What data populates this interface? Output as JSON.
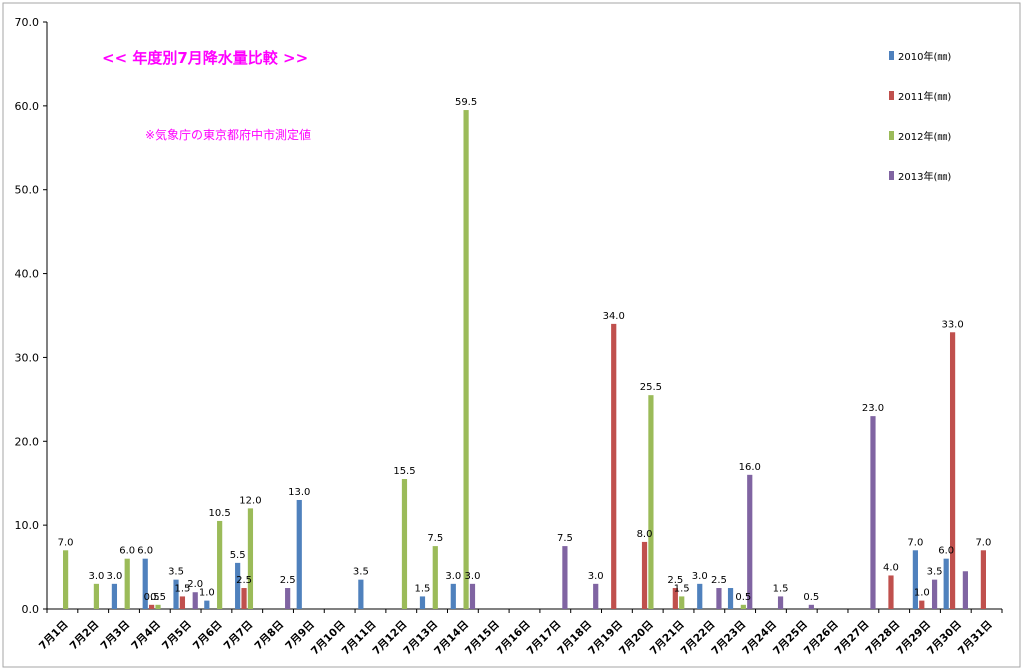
{
  "chart_data": {
    "type": "bar",
    "title": "<<  年度別7月降水量比較  >>",
    "subtitle": "※気象庁の東京都府中市測定値",
    "ylim": [
      0,
      70
    ],
    "yticks": [
      "0.0",
      "10.0",
      "20.0",
      "30.0",
      "40.0",
      "50.0",
      "60.0",
      "70.0"
    ],
    "grid": false,
    "legend_position": "right",
    "categories": [
      "7月1日",
      "7月2日",
      "7月3日",
      "7月4日",
      "7月5日",
      "7月6日",
      "7月7日",
      "7月8日",
      "7月9日",
      "7月10日",
      "7月11日",
      "7月12日",
      "7月13日",
      "7月14日",
      "7月15日",
      "7月16日",
      "7月17日",
      "7月18日",
      "7月19日",
      "7月20日",
      "7月21日",
      "7月22日",
      "7月23日",
      "7月24日",
      "7月25日",
      "7月26日",
      "7月27日",
      "7月28日",
      "7月29日",
      "7月30日",
      "7月31日"
    ],
    "series": [
      {
        "name": "2010年(㎜)",
        "color": "#4f81bd",
        "values": [
          null,
          null,
          3.0,
          6.0,
          3.5,
          1.0,
          5.5,
          null,
          13.0,
          null,
          3.5,
          null,
          1.5,
          3.0,
          null,
          null,
          null,
          null,
          null,
          null,
          null,
          3.0,
          2.5,
          null,
          null,
          null,
          null,
          null,
          7.0,
          6.0,
          null
        ]
      },
      {
        "name": "2011年(㎜)",
        "color": "#c0504d",
        "values": [
          null,
          null,
          null,
          0.5,
          1.5,
          null,
          2.5,
          null,
          null,
          null,
          null,
          null,
          null,
          null,
          null,
          null,
          null,
          null,
          34.0,
          8.0,
          2.5,
          null,
          null,
          null,
          null,
          null,
          null,
          4.0,
          1.0,
          33.0,
          7.0
        ]
      },
      {
        "name": "2012年(㎜)",
        "color": "#9bbb59",
        "values": [
          7.0,
          3.0,
          6.0,
          0.5,
          null,
          10.5,
          12.0,
          null,
          null,
          null,
          null,
          15.5,
          7.5,
          59.5,
          null,
          null,
          null,
          null,
          null,
          25.5,
          1.5,
          null,
          0.5,
          null,
          null,
          null,
          null,
          null,
          null,
          null,
          null
        ]
      },
      {
        "name": "2013年(㎜)",
        "color": "#8064a2",
        "values": [
          null,
          null,
          null,
          null,
          2.0,
          null,
          null,
          2.5,
          null,
          null,
          null,
          null,
          null,
          3.0,
          null,
          null,
          7.5,
          3.0,
          null,
          null,
          null,
          2.5,
          16.0,
          1.5,
          0.5,
          null,
          23.0,
          null,
          3.5,
          4.5,
          null
        ]
      }
    ],
    "data_labels": [
      {
        "category": "7月1日",
        "series": "2012年(㎜)",
        "text": "7.0"
      },
      {
        "category": "7月2日",
        "series": "2012年(㎜)",
        "text": "3.0"
      },
      {
        "category": "7月3日",
        "series": "2010年(㎜)",
        "text": "3.0"
      },
      {
        "category": "7月3日",
        "series": "2012年(㎜)",
        "text": "6.0"
      },
      {
        "category": "7月4日",
        "series": "2010年(㎜)",
        "text": "6.0"
      },
      {
        "category": "7月4日",
        "series": "2011年(㎜)",
        "text": "0.5"
      },
      {
        "category": "7月4日",
        "series": "2012年(㎜)",
        "text": "0.5"
      },
      {
        "category": "7月5日",
        "series": "2010年(㎜)",
        "text": "3.5"
      },
      {
        "category": "7月5日",
        "series": "2011年(㎜)",
        "text": "1.5"
      },
      {
        "category": "7月5日",
        "series": "2013年(㎜)",
        "text": "2.0"
      },
      {
        "category": "7月6日",
        "series": "2010年(㎜)",
        "text": "1.0"
      },
      {
        "category": "7月6日",
        "series": "2012年(㎜)",
        "text": "10.5"
      },
      {
        "category": "7月7日",
        "series": "2010年(㎜)",
        "text": "5.5"
      },
      {
        "category": "7月7日",
        "series": "2011年(㎜)",
        "text": "2.5"
      },
      {
        "category": "7月7日",
        "series": "2012年(㎜)",
        "text": "12.0"
      },
      {
        "category": "7月8日",
        "series": "2013年(㎜)",
        "text": "2.5"
      },
      {
        "category": "7月9日",
        "series": "2010年(㎜)",
        "text": "13.0"
      },
      {
        "category": "7月11日",
        "series": "2010年(㎜)",
        "text": "3.5"
      },
      {
        "category": "7月12日",
        "series": "2012年(㎜)",
        "text": "15.5"
      },
      {
        "category": "7月13日",
        "series": "2010年(㎜)",
        "text": "1.5"
      },
      {
        "category": "7月13日",
        "series": "2012年(㎜)",
        "text": "7.5"
      },
      {
        "category": "7月14日",
        "series": "2010年(㎜)",
        "text": "3.0"
      },
      {
        "category": "7月14日",
        "series": "2012年(㎜)",
        "text": "59.5"
      },
      {
        "category": "7月14日",
        "series": "2013年(㎜)",
        "text": "3.0"
      },
      {
        "category": "7月17日",
        "series": "2013年(㎜)",
        "text": "7.5"
      },
      {
        "category": "7月18日",
        "series": "2013年(㎜)",
        "text": "3.0"
      },
      {
        "category": "7月19日",
        "series": "2011年(㎜)",
        "text": "34.0"
      },
      {
        "category": "7月20日",
        "series": "2011年(㎜)",
        "text": "8.0"
      },
      {
        "category": "7月20日",
        "series": "2012年(㎜)",
        "text": "25.5"
      },
      {
        "category": "7月21日",
        "series": "2011年(㎜)",
        "text": "2.5"
      },
      {
        "category": "7月21日",
        "series": "2012年(㎜)",
        "text": "1.5"
      },
      {
        "category": "7月22日",
        "series": "2010年(㎜)",
        "text": "3.0"
      },
      {
        "category": "7月22日",
        "series": "2013年(㎜)",
        "text": "2.5"
      },
      {
        "category": "7月23日",
        "series": "2012年(㎜)",
        "text": "0.5"
      },
      {
        "category": "7月23日",
        "series": "2013年(㎜)",
        "text": "16.0"
      },
      {
        "category": "7月24日",
        "series": "2013年(㎜)",
        "text": "1.5"
      },
      {
        "category": "7月25日",
        "series": "2013年(㎜)",
        "text": "0.5"
      },
      {
        "category": "7月27日",
        "series": "2013年(㎜)",
        "text": "23.0"
      },
      {
        "category": "7月28日",
        "series": "2011年(㎜)",
        "text": "4.0"
      },
      {
        "category": "7月29日",
        "series": "2010年(㎜)",
        "text": "7.0"
      },
      {
        "category": "7月29日",
        "series": "2011年(㎜)",
        "text": "1.0"
      },
      {
        "category": "7月29日",
        "series": "2013年(㎜)",
        "text": "3.5"
      },
      {
        "category": "7月30日",
        "series": "2010年(㎜)",
        "text": "6.0"
      },
      {
        "category": "7月30日",
        "series": "2011年(㎜)",
        "text": "33.0"
      },
      {
        "category": "7月31日",
        "series": "2011年(㎜)",
        "text": "7.0"
      }
    ]
  }
}
